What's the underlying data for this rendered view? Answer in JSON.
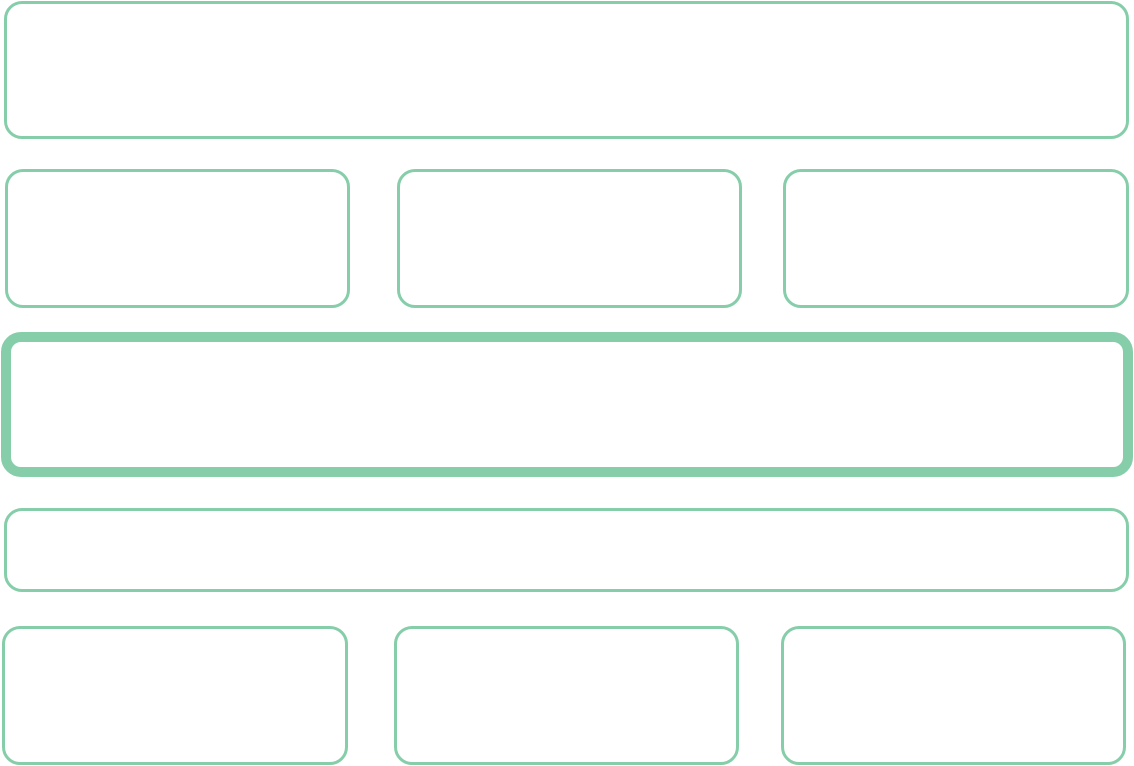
{
  "theme": {
    "border_color": "#86CDA9",
    "background": "#FFFFFF"
  },
  "panels": {
    "top": {
      "selected": false
    },
    "row2": [
      {
        "selected": false
      },
      {
        "selected": false
      },
      {
        "selected": false
      }
    ],
    "active": {
      "selected": true
    },
    "strip": {
      "selected": false
    },
    "row5": [
      {
        "selected": false
      },
      {
        "selected": false
      },
      {
        "selected": false
      }
    ]
  }
}
